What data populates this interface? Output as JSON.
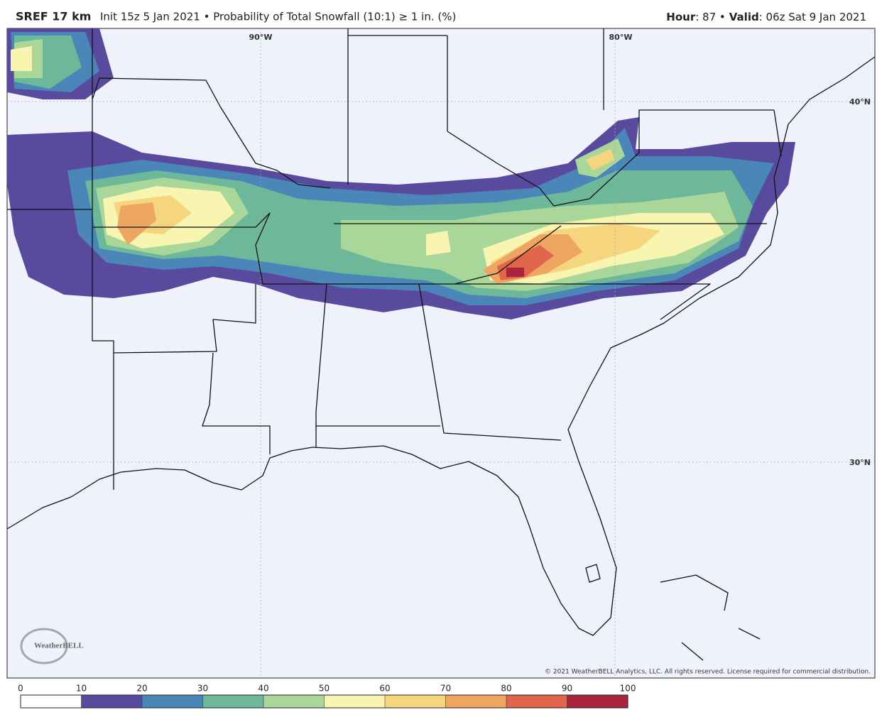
{
  "header": {
    "model": "SREF 17 km",
    "description": "Init 15z 5 Jan 2021 • Probability of Total Snowfall (10:1) ≥ 1 in. (%)",
    "hour_label": "Hour",
    "hour_value": ": 87 •",
    "valid_label": "Valid",
    "valid_value": ": 06z Sat 9 Jan 2021"
  },
  "map": {
    "graticule": [
      "90°W",
      "80°W",
      "40°N",
      "30°N"
    ],
    "logo": "WeatherBELL",
    "copyright": "© 2021 WeatherBELL Analytics, LLC. All rights reserved. License required for commercial distribution."
  },
  "legend": {
    "ticks": [
      0,
      10,
      20,
      30,
      40,
      50,
      60,
      70,
      80,
      90,
      100
    ],
    "colors": [
      "#ffffff",
      "#5a4a9e",
      "#4a86b8",
      "#6db89a",
      "#a9d79a",
      "#f7f5b0",
      "#f6d57f",
      "#eea562",
      "#e0654a",
      "#a8243f"
    ]
  }
}
